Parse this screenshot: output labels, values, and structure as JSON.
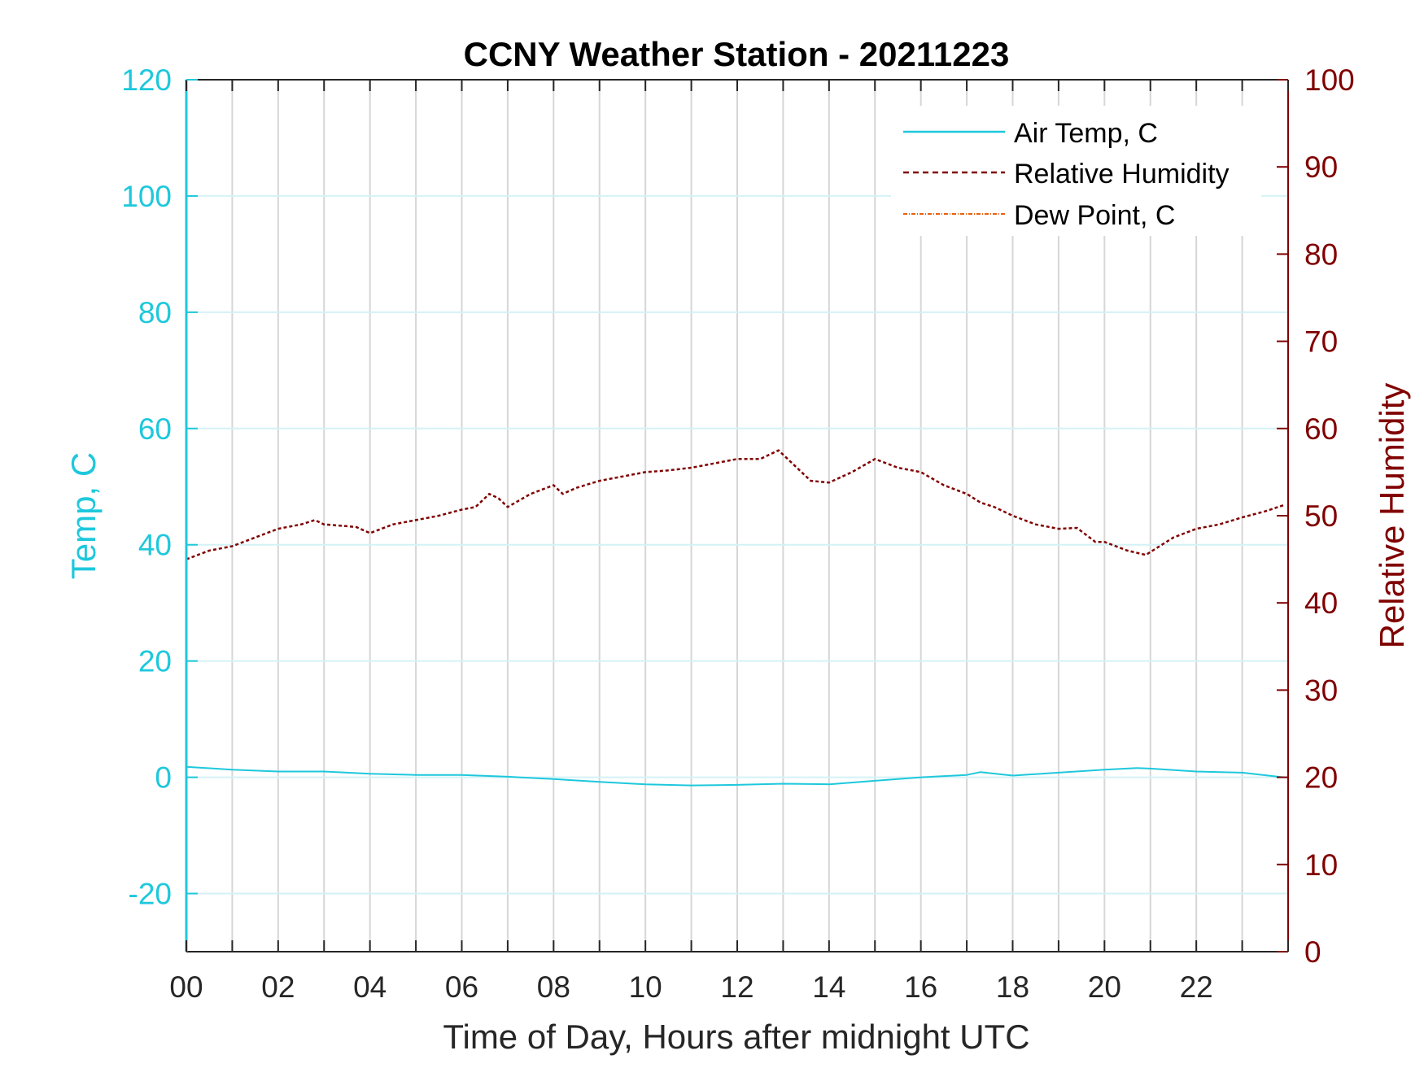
{
  "chart_data": {
    "type": "line",
    "title": "CCNY Weather Station - 20211223",
    "xlabel": "Time of Day, Hours after midnight UTC",
    "ylabel_left": "Temp, C",
    "ylabel_right": "Relative Humidity",
    "xlim": [
      0,
      24
    ],
    "ylim_left": [
      -30,
      120
    ],
    "ylim_right": [
      0,
      100
    ],
    "x_ticks": [
      0,
      2,
      4,
      6,
      8,
      10,
      12,
      14,
      16,
      18,
      20,
      22
    ],
    "x_tick_labels": [
      "00",
      "02",
      "04",
      "06",
      "08",
      "10",
      "12",
      "14",
      "16",
      "18",
      "20",
      "22"
    ],
    "y_ticks_left": [
      -20,
      0,
      20,
      40,
      60,
      80,
      100,
      120
    ],
    "y_tick_labels_left": [
      "-20",
      "0",
      "20",
      "40",
      "60",
      "80",
      "100",
      "120"
    ],
    "y_ticks_right": [
      0,
      10,
      20,
      30,
      40,
      50,
      60,
      70,
      80,
      90,
      100
    ],
    "y_tick_labels_right": [
      "0",
      "10",
      "20",
      "30",
      "40",
      "50",
      "60",
      "70",
      "80",
      "90",
      "100"
    ],
    "grid": true,
    "legend_position": "top-right",
    "colors": {
      "temp": "#1ec8dc",
      "rh": "#800000",
      "dew": "#e8600c",
      "vgrid": "#d6d6d6",
      "hgrid": "#d4f2f6",
      "axis": "#262626"
    },
    "series": [
      {
        "name": "Air Temp, C",
        "axis": "left",
        "style": "solid",
        "x": [
          0,
          1,
          2,
          3,
          4,
          5,
          6,
          7,
          8,
          9,
          10,
          11,
          12,
          13,
          14,
          15,
          16,
          17,
          17.3,
          18,
          19,
          20,
          20.7,
          21,
          22,
          23,
          23.9
        ],
        "values": [
          1.8,
          1.3,
          1.0,
          1.0,
          0.6,
          0.4,
          0.4,
          0.1,
          -0.3,
          -0.8,
          -1.2,
          -1.4,
          -1.3,
          -1.1,
          -1.2,
          -0.6,
          0.0,
          0.4,
          0.9,
          0.3,
          0.8,
          1.3,
          1.6,
          1.5,
          1.0,
          0.8,
          0.0
        ]
      },
      {
        "name": "Relative Humidity",
        "axis": "right",
        "style": "dashed",
        "x": [
          0,
          0.5,
          1,
          1.5,
          2,
          2.5,
          2.8,
          3,
          3.5,
          3.7,
          4,
          4.5,
          5,
          5.5,
          6,
          6.3,
          6.6,
          6.8,
          7,
          7.5,
          8,
          8.2,
          8.5,
          9,
          9.5,
          10,
          10.5,
          11,
          11.5,
          12,
          12.5,
          12.9,
          13.2,
          13.6,
          14,
          14.5,
          15,
          15.5,
          16,
          16.5,
          17,
          17.3,
          17.6,
          18,
          18.5,
          19,
          19.4,
          19.8,
          20,
          20.5,
          20.9,
          21.2,
          21.5,
          22,
          22.5,
          23,
          23.5,
          23.9
        ],
        "values": [
          45,
          46,
          46.5,
          47.5,
          48.5,
          49,
          49.5,
          49,
          48.8,
          48.7,
          48,
          49,
          49.5,
          50,
          50.7,
          51,
          52.5,
          52,
          51,
          52.5,
          53.5,
          52.5,
          53.2,
          54,
          54.5,
          55,
          55.2,
          55.5,
          56,
          56.5,
          56.5,
          57.5,
          56,
          54,
          53.8,
          55,
          56.5,
          55.5,
          55,
          53.5,
          52.5,
          51.5,
          51,
          50,
          49,
          48.5,
          48.6,
          47,
          47,
          46,
          45.5,
          46.5,
          47.5,
          48.5,
          49,
          49.8,
          50.5,
          51.2
        ]
      },
      {
        "name": "Dew Point, C",
        "axis": "left",
        "style": "dash-dot",
        "x": [],
        "values": []
      }
    ]
  }
}
